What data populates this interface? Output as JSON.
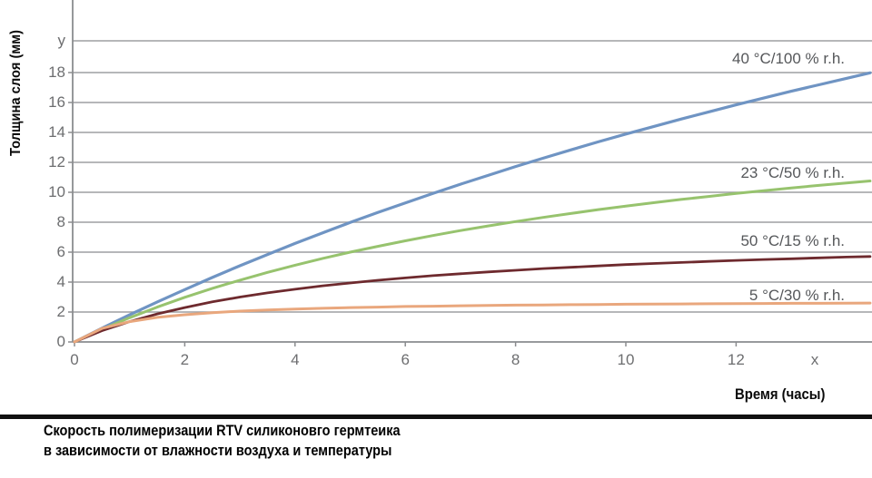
{
  "chart_data": {
    "type": "line",
    "ylabel": "Толщина слоя (мм)",
    "xlabel": "Время (часы)",
    "caption_lines": [
      "Скорость полимеризации RTV силиконовго гермтеика",
      "в зависимости от влажности воздуха и температуры"
    ],
    "grid": "horizontal-only",
    "legend_position": "inline-labels-right",
    "x_axis": {
      "ticks": [
        0,
        2,
        4,
        6,
        8,
        10,
        12
      ],
      "end_symbol": "x",
      "unit": "часы",
      "max_drawn": 14.43
    },
    "y_axis": {
      "ticks": [
        0,
        2,
        4,
        6,
        8,
        10,
        12,
        14,
        16,
        18
      ],
      "end_symbol": "y",
      "unit": "мм",
      "ylim": [
        0,
        18
      ]
    },
    "series": [
      {
        "label": "40 °C/100 % r.h.",
        "color": "#6f94c3",
        "points": [
          [
            0,
            0
          ],
          [
            0.5,
            0.92
          ],
          [
            1,
            1.81
          ],
          [
            1.5,
            2.67
          ],
          [
            2,
            3.5
          ],
          [
            2.5,
            4.31
          ],
          [
            3,
            5.09
          ],
          [
            3.5,
            5.84
          ],
          [
            4,
            6.58
          ],
          [
            4.5,
            7.29
          ],
          [
            5,
            7.98
          ],
          [
            5.5,
            8.65
          ],
          [
            6,
            9.29
          ],
          [
            6.5,
            9.93
          ],
          [
            7,
            10.54
          ],
          [
            7.5,
            11.13
          ],
          [
            8,
            11.72
          ],
          [
            8.5,
            12.28
          ],
          [
            9,
            12.83
          ],
          [
            9.5,
            13.37
          ],
          [
            10,
            13.89
          ],
          [
            10.5,
            14.39
          ],
          [
            11,
            14.89
          ],
          [
            11.5,
            15.37
          ],
          [
            12,
            15.84
          ],
          [
            12.5,
            16.3
          ],
          [
            13,
            16.75
          ],
          [
            13.5,
            17.18
          ],
          [
            14,
            17.61
          ],
          [
            14.43,
            17.98
          ]
        ]
      },
      {
        "label": "23 °C/50 % r.h.",
        "color": "#97c36e",
        "points": [
          [
            0,
            0
          ],
          [
            0.5,
            0.85
          ],
          [
            1,
            1.62
          ],
          [
            1.5,
            2.33
          ],
          [
            2,
            2.98
          ],
          [
            2.5,
            3.58
          ],
          [
            3,
            4.13
          ],
          [
            3.5,
            4.65
          ],
          [
            4,
            5.13
          ],
          [
            4.5,
            5.58
          ],
          [
            5,
            6.0
          ],
          [
            5.5,
            6.39
          ],
          [
            6,
            6.76
          ],
          [
            6.5,
            7.11
          ],
          [
            7,
            7.44
          ],
          [
            7.5,
            7.75
          ],
          [
            8,
            8.04
          ],
          [
            8.5,
            8.32
          ],
          [
            9,
            8.58
          ],
          [
            9.5,
            8.84
          ],
          [
            10,
            9.07
          ],
          [
            10.5,
            9.3
          ],
          [
            11,
            9.52
          ],
          [
            11.5,
            9.72
          ],
          [
            12,
            9.92
          ],
          [
            12.5,
            10.11
          ],
          [
            13,
            10.29
          ],
          [
            13.5,
            10.46
          ],
          [
            14,
            10.62
          ],
          [
            14.43,
            10.76
          ]
        ]
      },
      {
        "label": "50 °C/15 % r.h.",
        "color": "#6e2a2e",
        "points": [
          [
            0,
            0
          ],
          [
            0.5,
            0.75
          ],
          [
            1,
            1.36
          ],
          [
            1.5,
            1.87
          ],
          [
            2,
            2.3
          ],
          [
            2.5,
            2.68
          ],
          [
            3,
            3.0
          ],
          [
            3.5,
            3.28
          ],
          [
            4,
            3.52
          ],
          [
            4.5,
            3.75
          ],
          [
            5,
            3.94
          ],
          [
            5.5,
            4.12
          ],
          [
            6,
            4.28
          ],
          [
            6.5,
            4.43
          ],
          [
            7,
            4.56
          ],
          [
            7.5,
            4.68
          ],
          [
            8,
            4.79
          ],
          [
            8.5,
            4.9
          ],
          [
            9,
            4.99
          ],
          [
            9.5,
            5.08
          ],
          [
            10,
            5.17
          ],
          [
            10.5,
            5.24
          ],
          [
            11,
            5.31
          ],
          [
            11.5,
            5.38
          ],
          [
            12,
            5.45
          ],
          [
            12.5,
            5.51
          ],
          [
            13,
            5.56
          ],
          [
            13.5,
            5.62
          ],
          [
            14,
            5.67
          ],
          [
            14.43,
            5.71
          ]
        ]
      },
      {
        "label": "5 °C/30 % r.h.",
        "color": "#e9a77d",
        "points": [
          [
            0,
            0
          ],
          [
            0.5,
            0.9
          ],
          [
            1,
            1.36
          ],
          [
            1.5,
            1.64
          ],
          [
            2,
            1.82
          ],
          [
            2.5,
            1.96
          ],
          [
            3,
            2.06
          ],
          [
            3.5,
            2.14
          ],
          [
            4,
            2.2
          ],
          [
            4.5,
            2.25
          ],
          [
            5,
            2.3
          ],
          [
            5.5,
            2.33
          ],
          [
            6,
            2.37
          ],
          [
            6.5,
            2.39
          ],
          [
            7,
            2.42
          ],
          [
            7.5,
            2.44
          ],
          [
            8,
            2.46
          ],
          [
            8.5,
            2.47
          ],
          [
            9,
            2.49
          ],
          [
            9.5,
            2.5
          ],
          [
            10,
            2.52
          ],
          [
            10.5,
            2.53
          ],
          [
            11,
            2.54
          ],
          [
            11.5,
            2.55
          ],
          [
            12,
            2.56
          ],
          [
            12.5,
            2.57
          ],
          [
            13,
            2.58
          ],
          [
            13.5,
            2.58
          ],
          [
            14,
            2.59
          ],
          [
            14.43,
            2.6
          ]
        ]
      }
    ]
  },
  "colors": {
    "grid": "#9d9fa2",
    "axis": "#8a8c8f",
    "tick_text": "#6d6e70",
    "series_label_text": "#55575a",
    "caption_text": "#000000",
    "divider": "#101010",
    "background": "#ffffff"
  }
}
